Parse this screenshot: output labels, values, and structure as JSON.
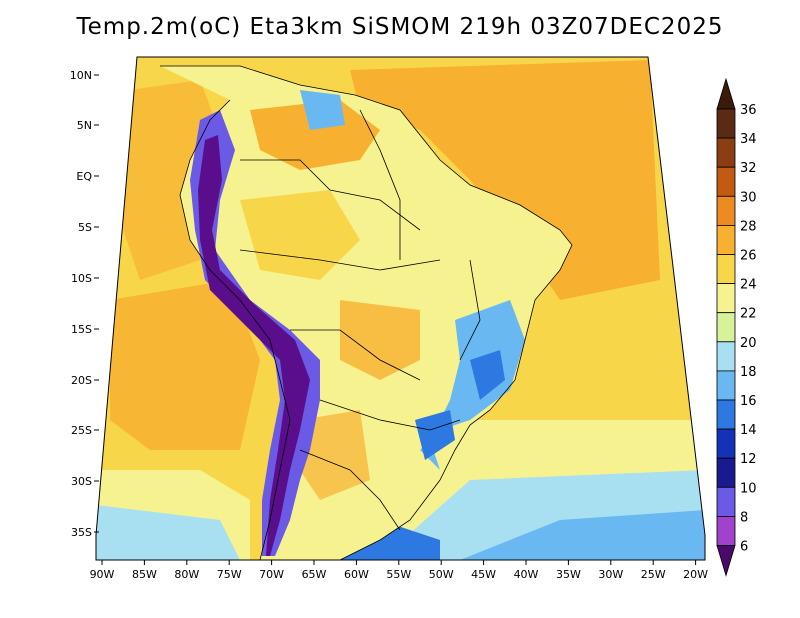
{
  "title": "Temp.2m(oC) Eta3km SiSMOM 219h 03Z07DEC2025",
  "map": {
    "lat_labels": [
      "10N",
      "5N",
      "EQ",
      "5S",
      "10S",
      "15S",
      "20S",
      "25S",
      "30S",
      "35S"
    ],
    "lon_labels": [
      "90W",
      "85W",
      "80W",
      "75W",
      "70W",
      "65W",
      "60W",
      "55W",
      "50W",
      "45W",
      "40W",
      "35W",
      "30W",
      "25W",
      "20W"
    ]
  },
  "colorbar": {
    "levels": [
      "36",
      "34",
      "32",
      "30",
      "28",
      "26",
      "24",
      "22",
      "20",
      "18",
      "16",
      "14",
      "12",
      "10",
      "8",
      "6"
    ],
    "colors": [
      "#5a2a14",
      "#8a3e12",
      "#c25a12",
      "#ee8a22",
      "#f7b030",
      "#f7d64a",
      "#f7f290",
      "#d6f29a",
      "#a8e0f2",
      "#6ab8f2",
      "#2e78e2",
      "#1432b8",
      "#1a1a90",
      "#6a5ae6",
      "#a042cc",
      "#5a0e8c"
    ],
    "top_cap_color": "#3a1a0a",
    "bottom_cap_color": "#4a0a6a"
  },
  "palette": {
    "ocean_warm": "#f7b030",
    "ocean_mid": "#f7d64a",
    "ocean_cool": "#f7f290",
    "ocean_south": "#a8e0f2",
    "land_base": "#f7f290",
    "land_warm": "#f7d64a",
    "andes": "#5a0e8c",
    "andes_edge": "#6a5ae6",
    "highland": "#6ab8f2",
    "border": "#000000"
  }
}
